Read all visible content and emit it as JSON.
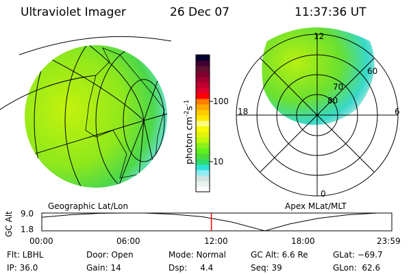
{
  "header": {
    "instrument": "Ultraviolet Imager",
    "date": "26 Dec 07",
    "time": "11:37:36 UT"
  },
  "colorbar": {
    "label": "photon cm",
    "exp1": "-2",
    "s": "s",
    "exp2": "-1",
    "ticks": [
      {
        "value": 100,
        "label": "100"
      },
      {
        "value": 10,
        "label": "10"
      }
    ],
    "colors": [
      "#ffffff",
      "#e8f4ee",
      "#d2e2e2",
      "#90ecf2",
      "#2ee2d8",
      "#30dc6a",
      "#4cdc3c",
      "#5ef01c",
      "#8ef01a",
      "#bcf80c",
      "#e2f40c",
      "#f6fa00",
      "#fffa80",
      "#ffe800",
      "#ffcc00",
      "#ffa800",
      "#ff8000",
      "#ff0000",
      "#e0002a",
      "#c00030",
      "#a00030",
      "#800030",
      "#601030",
      "#400030",
      "#000030"
    ]
  },
  "left_panel": {
    "label": "Geographic Lat/Lon"
  },
  "right_panel": {
    "label": "Apex MLat/MLT",
    "mlt_labels": {
      "top": "12",
      "left": "18",
      "right": "6",
      "bottom": "0"
    },
    "lat_labels": [
      "80",
      "70",
      "60"
    ]
  },
  "timeline": {
    "ylabel": "GC Alt",
    "ymax_label": "9.0",
    "ymin_label": "1.8",
    "ylim": [
      1.8,
      9.0
    ],
    "xlim": [
      0,
      24
    ],
    "xticks": [
      "00:00",
      "06:00",
      "12:00",
      "18:00",
      "23:59"
    ],
    "current_hour": 11.63,
    "current_color": "#ff0000",
    "curve": [
      [
        0,
        7.3
      ],
      [
        2,
        8.3
      ],
      [
        4,
        8.9
      ],
      [
        5.5,
        9.0
      ],
      [
        7,
        9.0
      ],
      [
        9,
        8.5
      ],
      [
        11,
        7.5
      ],
      [
        13,
        5.4
      ],
      [
        15.3,
        1.8
      ],
      [
        17,
        4.6
      ],
      [
        19,
        6.9
      ],
      [
        21,
        8.3
      ],
      [
        23,
        9.0
      ],
      [
        23.98,
        9.0
      ]
    ]
  },
  "status": {
    "row1": [
      "Flt: LBHL",
      "Door: Open",
      "Mode: Normal",
      "GC Alt: 6.6 Re",
      "GLat: −69.7"
    ],
    "row2": [
      "IP: 36.0",
      "Gain: 14",
      "Dsp:     4.4",
      "Seq: 39",
      "GLon:  62.6"
    ]
  }
}
